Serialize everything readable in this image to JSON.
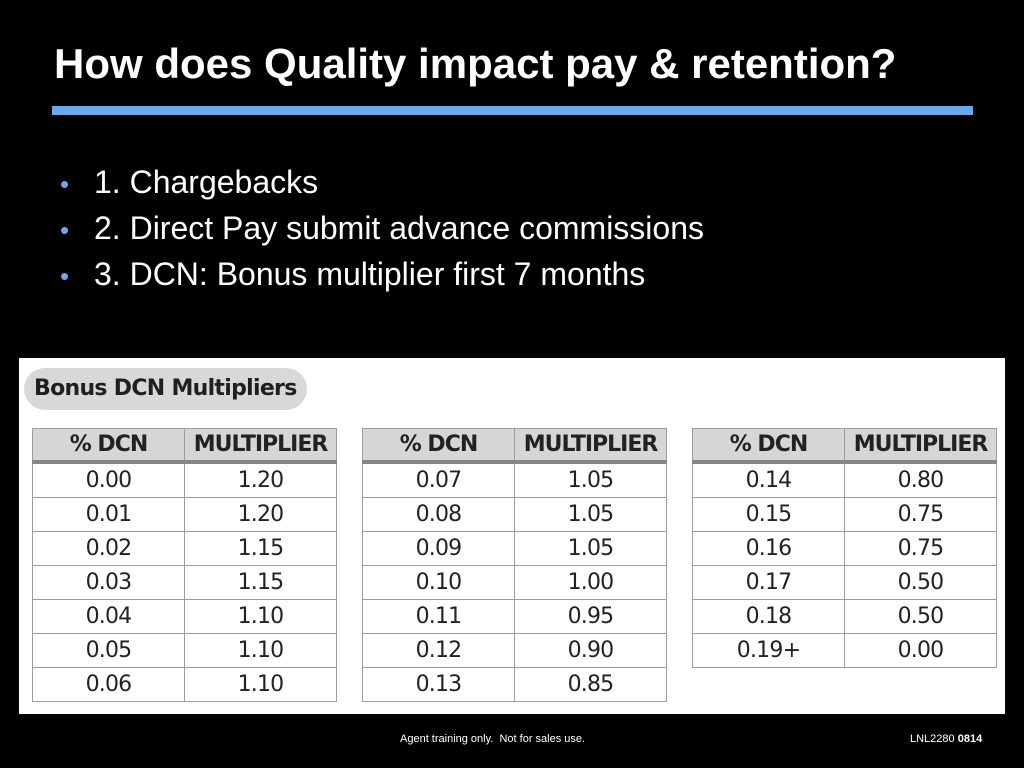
{
  "title": "How does Quality impact pay & retention?",
  "accent_color": "#6aa8e8",
  "bullets": [
    "1. Chargebacks",
    "2. Direct Pay submit advance commissions",
    "3. DCN: Bonus multiplier first 7 months"
  ],
  "bullet_symbol": "•",
  "table_panel": {
    "heading": "Bonus DCN Multipliers",
    "columns": [
      "% DCN",
      "MULTIPLIER"
    ],
    "tables": [
      {
        "rows": [
          [
            "0.00",
            "1.20"
          ],
          [
            "0.01",
            "1.20"
          ],
          [
            "0.02",
            "1.15"
          ],
          [
            "0.03",
            "1.15"
          ],
          [
            "0.04",
            "1.10"
          ],
          [
            "0.05",
            "1.10"
          ],
          [
            "0.06",
            "1.10"
          ]
        ]
      },
      {
        "rows": [
          [
            "0.07",
            "1.05"
          ],
          [
            "0.08",
            "1.05"
          ],
          [
            "0.09",
            "1.05"
          ],
          [
            "0.10",
            "1.00"
          ],
          [
            "0.11",
            "0.95"
          ],
          [
            "0.12",
            "0.90"
          ],
          [
            "0.13",
            "0.85"
          ]
        ]
      },
      {
        "rows": [
          [
            "0.14",
            "0.80"
          ],
          [
            "0.15",
            "0.75"
          ],
          [
            "0.16",
            "0.75"
          ],
          [
            "0.17",
            "0.50"
          ],
          [
            "0.18",
            "0.50"
          ],
          [
            "0.19+",
            "0.00"
          ]
        ]
      }
    ]
  },
  "footer": {
    "disclaimer": "Agent training only.  Not for sales use.",
    "code_prefix": "LNL2280",
    "code_suffix": "0814"
  }
}
